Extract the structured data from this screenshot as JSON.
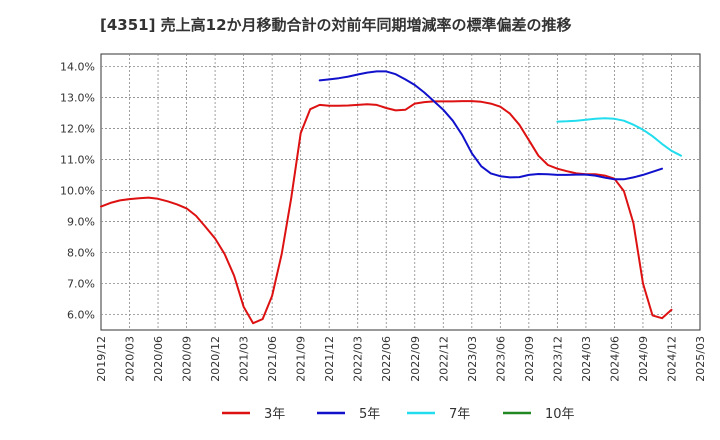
{
  "chart_data": {
    "type": "line",
    "title": "[4351]  売上高12か月移動合計の対前年同期増減率の標準偏差の推移",
    "xlabel": "",
    "ylabel": "",
    "ylim": [
      5.5,
      14.4
    ],
    "y_ticks": [
      "6.0%",
      "7.0%",
      "8.0%",
      "9.0%",
      "10.0%",
      "11.0%",
      "12.0%",
      "13.0%",
      "14.0%"
    ],
    "y_tick_values": [
      6,
      7,
      8,
      9,
      10,
      11,
      12,
      13,
      14
    ],
    "x_ticks": [
      "2019/12",
      "2020/03",
      "2020/06",
      "2020/09",
      "2020/12",
      "2021/03",
      "2021/06",
      "2021/09",
      "2021/12",
      "2022/03",
      "2022/06",
      "2022/09",
      "2022/12",
      "2023/03",
      "2023/06",
      "2023/09",
      "2023/12",
      "2024/03",
      "2024/06",
      "2024/09",
      "2024/12",
      "2025/03"
    ],
    "grid": true,
    "legend_position": "bottom",
    "series": [
      {
        "name": "3年",
        "color": "#dd1111",
        "start_index": 0,
        "values": [
          9.48,
          9.6,
          9.68,
          9.72,
          9.75,
          9.77,
          9.73,
          9.65,
          9.55,
          9.42,
          9.18,
          8.82,
          8.45,
          7.95,
          7.25,
          6.25,
          5.72,
          5.85,
          6.6,
          7.95,
          9.75,
          11.85,
          12.62,
          12.76,
          12.73,
          12.73,
          12.74,
          12.76,
          12.78,
          12.76,
          12.66,
          12.58,
          12.6,
          12.8,
          12.85,
          12.87,
          12.87,
          12.87,
          12.88,
          12.88,
          12.86,
          12.8,
          12.7,
          12.48,
          12.12,
          11.62,
          11.12,
          10.82,
          10.7,
          10.62,
          10.55,
          10.52,
          10.52,
          10.48,
          10.38,
          9.98,
          8.95,
          7.0,
          5.97,
          5.88,
          6.15
        ]
      },
      {
        "name": "5年",
        "color": "#1111cc",
        "start_index": 23,
        "values": [
          13.55,
          13.58,
          13.62,
          13.67,
          13.74,
          13.8,
          13.84,
          13.84,
          13.75,
          13.58,
          13.4,
          13.16,
          12.88,
          12.6,
          12.25,
          11.78,
          11.2,
          10.78,
          10.55,
          10.46,
          10.42,
          10.43,
          10.5,
          10.53,
          10.52,
          10.5,
          10.5,
          10.51,
          10.51,
          10.48,
          10.41,
          10.36,
          10.36,
          10.42,
          10.5,
          10.6,
          10.7
        ]
      },
      {
        "name": "7年",
        "color": "#22ddee",
        "start_index": 48,
        "values": [
          12.22,
          12.23,
          12.25,
          12.28,
          12.31,
          12.33,
          12.31,
          12.25,
          12.12,
          11.96,
          11.75,
          11.5,
          11.28,
          11.12
        ]
      },
      {
        "name": "10年",
        "color": "#228822",
        "start_index": 0,
        "values": []
      }
    ]
  }
}
